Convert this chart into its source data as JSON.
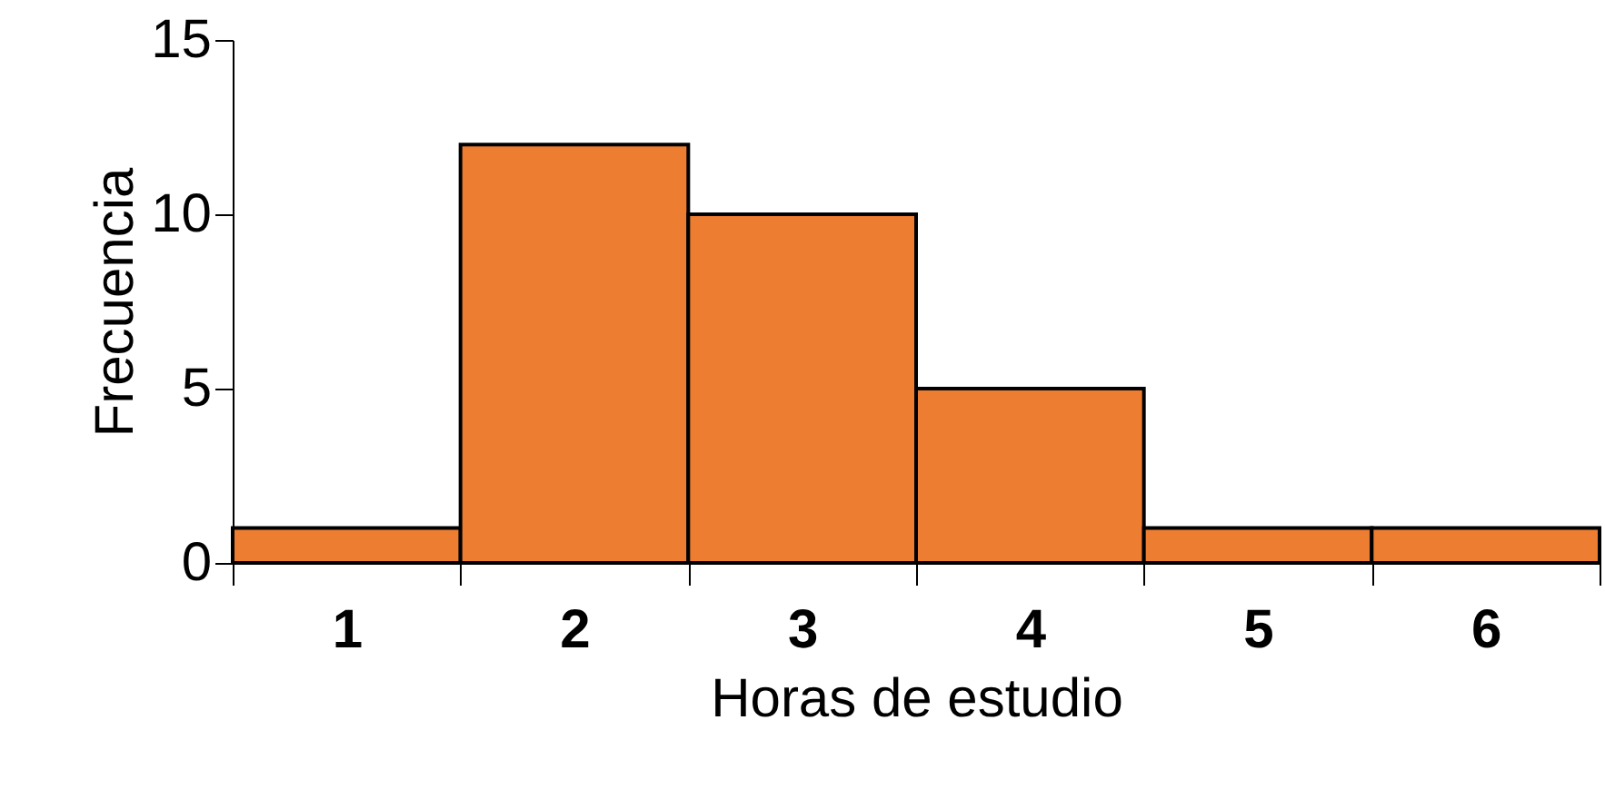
{
  "chart_data": {
    "type": "bar",
    "xlabel": "Horas de estudio",
    "ylabel": "Frecuencia",
    "categories": [
      "1",
      "2",
      "3",
      "4",
      "5",
      "6"
    ],
    "values": [
      1,
      12,
      10,
      5,
      1,
      1
    ],
    "color": "#ed7d31",
    "ylim": [
      0,
      15
    ],
    "yticks": [
      0,
      5,
      10,
      15
    ],
    "grid": false
  }
}
